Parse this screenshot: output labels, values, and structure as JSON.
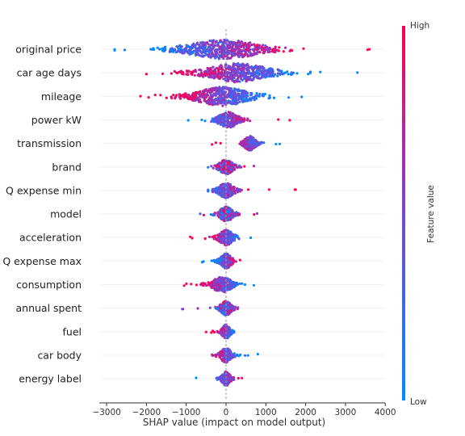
{
  "chart_data": {
    "type": "scatter",
    "subtype": "beeswarm",
    "title": "",
    "xlabel": "SHAP value (impact on model output)",
    "ylabel": "",
    "xlim": [
      -3100,
      4000
    ],
    "xticks": [
      -3000,
      -2000,
      -1000,
      0,
      1000,
      2000,
      3000,
      4000
    ],
    "features": [
      {
        "name": "original price",
        "min": -2800,
        "max": 3600,
        "density": 1.0,
        "spread": 1300,
        "center": -50,
        "low_side": "negative"
      },
      {
        "name": "car age days",
        "min": -2000,
        "max": 3300,
        "density": 0.95,
        "spread": 1100,
        "center": 300,
        "low_side": "positive"
      },
      {
        "name": "mileage",
        "min": -2150,
        "max": 1900,
        "density": 0.95,
        "spread": 950,
        "center": -100,
        "low_side": "positive"
      },
      {
        "name": "power kW",
        "min": -950,
        "max": 1600,
        "density": 0.55,
        "spread": 350,
        "center": 50,
        "low_side": "negative"
      },
      {
        "name": "transmission",
        "min": -350,
        "max": 1350,
        "density": 0.4,
        "spread": 200,
        "center": 600,
        "low_side": "positive"
      },
      {
        "name": "brand",
        "min": -450,
        "max": 700,
        "density": 0.45,
        "spread": 250,
        "center": 0,
        "low_side": "mixed"
      },
      {
        "name": "Q expense min",
        "min": -450,
        "max": 1750,
        "density": 0.45,
        "spread": 280,
        "center": 0,
        "low_side": "negative"
      },
      {
        "name": "model",
        "min": -650,
        "max": 780,
        "density": 0.45,
        "spread": 250,
        "center": 0,
        "low_side": "mixed"
      },
      {
        "name": "acceleration",
        "min": -900,
        "max": 620,
        "density": 0.5,
        "spread": 250,
        "center": 0,
        "low_side": "positive"
      },
      {
        "name": "Q expense max",
        "min": -600,
        "max": 350,
        "density": 0.45,
        "spread": 200,
        "center": 0,
        "low_side": "negative"
      },
      {
        "name": "consumption",
        "min": -1050,
        "max": 700,
        "density": 0.5,
        "spread": 350,
        "center": -100,
        "low_side": "positive"
      },
      {
        "name": "annual spent",
        "min": -1100,
        "max": 300,
        "density": 0.4,
        "spread": 200,
        "center": 0,
        "low_side": "mixed"
      },
      {
        "name": "fuel",
        "min": -500,
        "max": 200,
        "density": 0.35,
        "spread": 150,
        "center": 0,
        "low_side": "positive"
      },
      {
        "name": "car body",
        "min": -350,
        "max": 800,
        "density": 0.4,
        "spread": 200,
        "center": 0,
        "low_side": "positive"
      },
      {
        "name": "energy label",
        "min": -750,
        "max": 400,
        "density": 0.35,
        "spread": 150,
        "center": 0,
        "low_side": "negative"
      }
    ],
    "colorbar": {
      "label": "Feature value",
      "high": "High",
      "low": "Low",
      "high_color": "#ff0052",
      "low_color": "#008bfb"
    },
    "zero_line": true
  }
}
